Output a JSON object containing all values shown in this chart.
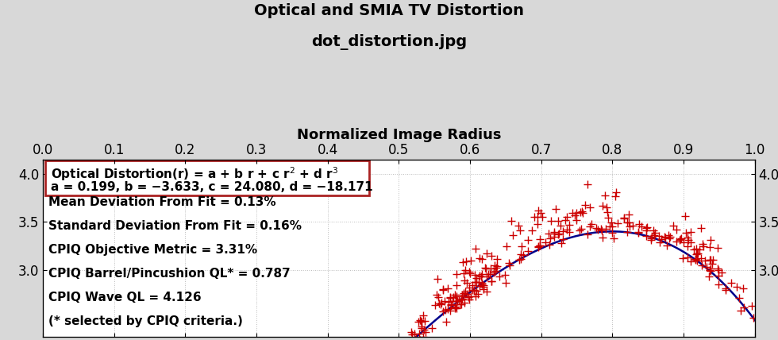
{
  "title_line1": "Optical and SMIA TV Distortion",
  "title_line2": "dot_distortion.jpg",
  "xlabel": "Normalized Image Radius",
  "background_color": "#d8d8d8",
  "plot_background": "#ffffff",
  "xlim": [
    0,
    1
  ],
  "ylim": [
    2.3,
    4.15
  ],
  "yticks": [
    3.0,
    3.5,
    4.0
  ],
  "xticks": [
    0,
    0.1,
    0.2,
    0.3,
    0.4,
    0.5,
    0.6,
    0.7,
    0.8,
    0.9,
    1.0
  ],
  "curve_color": "#00008b",
  "scatter_color": "#cc0000",
  "a": 0.199,
  "b": -3.633,
  "c": 24.08,
  "d": -18.171,
  "grid_color": "#bbbbbb",
  "grid_linestyle": "dotted",
  "title_fontsize": 14,
  "axis_label_fontsize": 13,
  "tick_fontsize": 12,
  "stats_fontsize": 11,
  "annotation_fontsize": 11,
  "box_edge_color": "#aa2222",
  "stats_lines": [
    "Mean Deviation From Fit = 0.13%",
    "Standard Deviation From Fit = 0.16%",
    "CPIQ Objective Metric = 3.31%",
    "CPIQ Barrel/Pincushion QL* = 0.787",
    "CPIQ Wave QL = 4.126",
    "(* selected by CPIQ criteria.)"
  ]
}
